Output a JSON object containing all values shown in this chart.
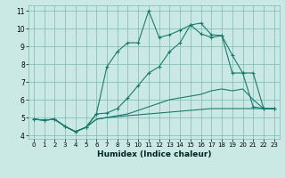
{
  "xlabel": "Humidex (Indice chaleur)",
  "xlim": [
    -0.5,
    23.5
  ],
  "ylim": [
    3.8,
    11.3
  ],
  "yticks": [
    4,
    5,
    6,
    7,
    8,
    9,
    10,
    11
  ],
  "xticks": [
    0,
    1,
    2,
    3,
    4,
    5,
    6,
    7,
    8,
    9,
    10,
    11,
    12,
    13,
    14,
    15,
    16,
    17,
    18,
    19,
    20,
    21,
    22,
    23
  ],
  "bg_color": "#cbe9e4",
  "grid_color": "#7ab8b0",
  "line_color": "#1a7a6e",
  "lines": [
    {
      "x": [
        0,
        1,
        2,
        3,
        4,
        5,
        6,
        7,
        8,
        9,
        10,
        11,
        12,
        13,
        14,
        15,
        16,
        17,
        18,
        19,
        20,
        21,
        22,
        23
      ],
      "y": [
        4.9,
        4.85,
        4.9,
        4.5,
        4.2,
        4.45,
        4.9,
        5.0,
        5.05,
        5.1,
        5.15,
        5.2,
        5.25,
        5.3,
        5.35,
        5.4,
        5.45,
        5.5,
        5.5,
        5.5,
        5.5,
        5.5,
        5.5,
        5.5
      ],
      "marker": false
    },
    {
      "x": [
        0,
        1,
        2,
        3,
        4,
        5,
        6,
        7,
        8,
        9,
        10,
        11,
        12,
        13,
        14,
        15,
        16,
        17,
        18,
        19,
        20,
        21,
        22,
        23
      ],
      "y": [
        4.9,
        4.85,
        4.9,
        4.5,
        4.2,
        4.45,
        4.9,
        5.0,
        5.1,
        5.2,
        5.4,
        5.6,
        5.8,
        6.0,
        6.1,
        6.2,
        6.3,
        6.5,
        6.6,
        6.5,
        6.6,
        6.0,
        5.5,
        5.5
      ],
      "marker": false
    },
    {
      "x": [
        0,
        1,
        2,
        3,
        4,
        5,
        6,
        7,
        8,
        9,
        10,
        11,
        12,
        13,
        14,
        15,
        16,
        17,
        18,
        19,
        20,
        21,
        22,
        23
      ],
      "y": [
        4.9,
        4.85,
        4.9,
        4.5,
        4.2,
        4.45,
        5.2,
        5.25,
        5.5,
        6.1,
        6.8,
        7.5,
        7.85,
        8.7,
        9.2,
        10.2,
        10.3,
        9.65,
        9.6,
        7.5,
        7.5,
        7.5,
        5.5,
        5.5
      ],
      "marker": true
    },
    {
      "x": [
        0,
        1,
        2,
        3,
        4,
        5,
        6,
        7,
        8,
        9,
        10,
        11,
        12,
        13,
        14,
        15,
        16,
        17,
        18,
        19,
        20,
        21,
        22,
        23
      ],
      "y": [
        4.9,
        4.85,
        4.9,
        4.5,
        4.2,
        4.45,
        5.2,
        7.85,
        8.7,
        9.2,
        9.2,
        11.0,
        9.5,
        9.65,
        9.9,
        10.2,
        9.7,
        9.5,
        9.6,
        8.5,
        7.5,
        5.6,
        5.5,
        5.5
      ],
      "marker": true
    }
  ]
}
